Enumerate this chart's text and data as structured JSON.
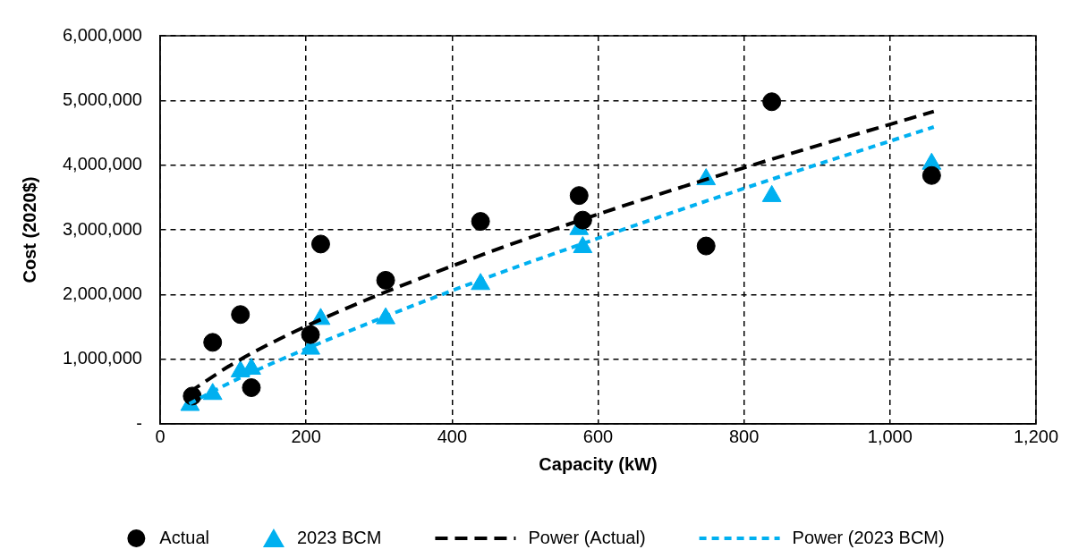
{
  "chart_data": {
    "type": "scatter",
    "xlabel": "Capacity (kW)",
    "ylabel": "Cost (2020$)",
    "xlim": [
      0,
      1200
    ],
    "xticks": [
      0,
      200,
      400,
      600,
      800,
      {
        "value": 1000,
        "label": "1,000"
      },
      {
        "value": 1200,
        "label": "1,200"
      }
    ],
    "ylim": [
      0,
      6000000
    ],
    "yticks": [
      {
        "value": 0,
        "label": "-"
      },
      {
        "value": 1000000,
        "label": "1,000,000"
      },
      {
        "value": 2000000,
        "label": "2,000,000"
      },
      {
        "value": 3000000,
        "label": "3,000,000"
      },
      {
        "value": 4000000,
        "label": "4,000,000"
      },
      {
        "value": 5000000,
        "label": "5,000,000"
      },
      {
        "value": 6000000,
        "label": "6,000,000"
      }
    ],
    "grid": true,
    "legend": "bottom",
    "series": [
      {
        "name": "Actual",
        "marker": "circle",
        "color": "#000000",
        "x": [
          44,
          72,
          110,
          125,
          206,
          220,
          309,
          439,
          574,
          579,
          748,
          838,
          1057
        ],
        "values": [
          430000,
          1260000,
          1690000,
          560000,
          1380000,
          2780000,
          2220000,
          3130000,
          3530000,
          3150000,
          2750000,
          4980000,
          3840000
        ]
      },
      {
        "name": "2023 BCM",
        "marker": "triangle",
        "color": "#00b0f0",
        "x": [
          41,
          47,
          72,
          110,
          125,
          206,
          220,
          309,
          439,
          574,
          579,
          748,
          838,
          1057
        ],
        "values": [
          290000,
          null,
          460000,
          810000,
          850000,
          1160000,
          1620000,
          1630000,
          2160000,
          3010000,
          2730000,
          3780000,
          3520000,
          4020000
        ]
      },
      {
        "name": "Power (Actual)",
        "type": "line",
        "line_style": "dashed",
        "color": "#000000",
        "x": [
          40,
          100,
          200,
          400,
          600,
          800,
          1060
        ],
        "values": [
          490000,
          930000,
          1510000,
          2440000,
          3240000,
          3960000,
          4830000
        ]
      },
      {
        "name": "Power (2023 BCM)",
        "type": "line",
        "line_style": "dotted",
        "color": "#00b0f0",
        "x": [
          40,
          100,
          200,
          400,
          600,
          800,
          1060
        ],
        "values": [
          310000,
          660000,
          1160000,
          2060000,
          2870000,
          3640000,
          4590000
        ]
      }
    ]
  }
}
